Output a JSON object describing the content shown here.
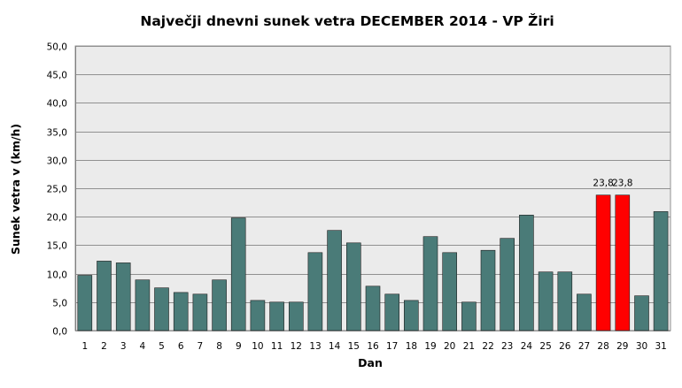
{
  "chart_data": {
    "type": "bar",
    "title": "Največji dnevni sunek vetra DECEMBER 2014 - VP Žiri",
    "xlabel": "Dan",
    "ylabel": "Sunek vetra v (km/h)",
    "ylim": [
      0,
      50
    ],
    "y_ticks": [
      "0,0",
      "5,0",
      "10,0",
      "15,0",
      "20,0",
      "25,0",
      "30,0",
      "35,0",
      "40,0",
      "45,0",
      "50,0"
    ],
    "grid": true,
    "categories": [
      "1",
      "2",
      "3",
      "4",
      "5",
      "6",
      "7",
      "8",
      "9",
      "10",
      "11",
      "12",
      "13",
      "14",
      "15",
      "16",
      "17",
      "18",
      "19",
      "20",
      "21",
      "22",
      "23",
      "24",
      "25",
      "26",
      "27",
      "28",
      "29",
      "30",
      "31"
    ],
    "values": [
      9.7,
      12.2,
      11.9,
      8.9,
      7.5,
      6.7,
      6.4,
      8.9,
      19.8,
      5.3,
      5.0,
      5.0,
      13.7,
      17.6,
      15.4,
      7.8,
      6.4,
      5.3,
      16.5,
      13.7,
      5.0,
      14.1,
      16.2,
      20.3,
      10.3,
      10.3,
      6.4,
      23.8,
      23.8,
      6.1,
      20.9
    ],
    "highlight_days": [
      "28",
      "29"
    ],
    "data_labels": [
      {
        "category": "28",
        "text": "23,8"
      },
      {
        "category": "29",
        "text": "23,8"
      }
    ],
    "colors": {
      "bar": "#4a7b78",
      "highlight": "#ff0000",
      "plot_background": "#ebebeb",
      "grid": "#909090"
    }
  }
}
